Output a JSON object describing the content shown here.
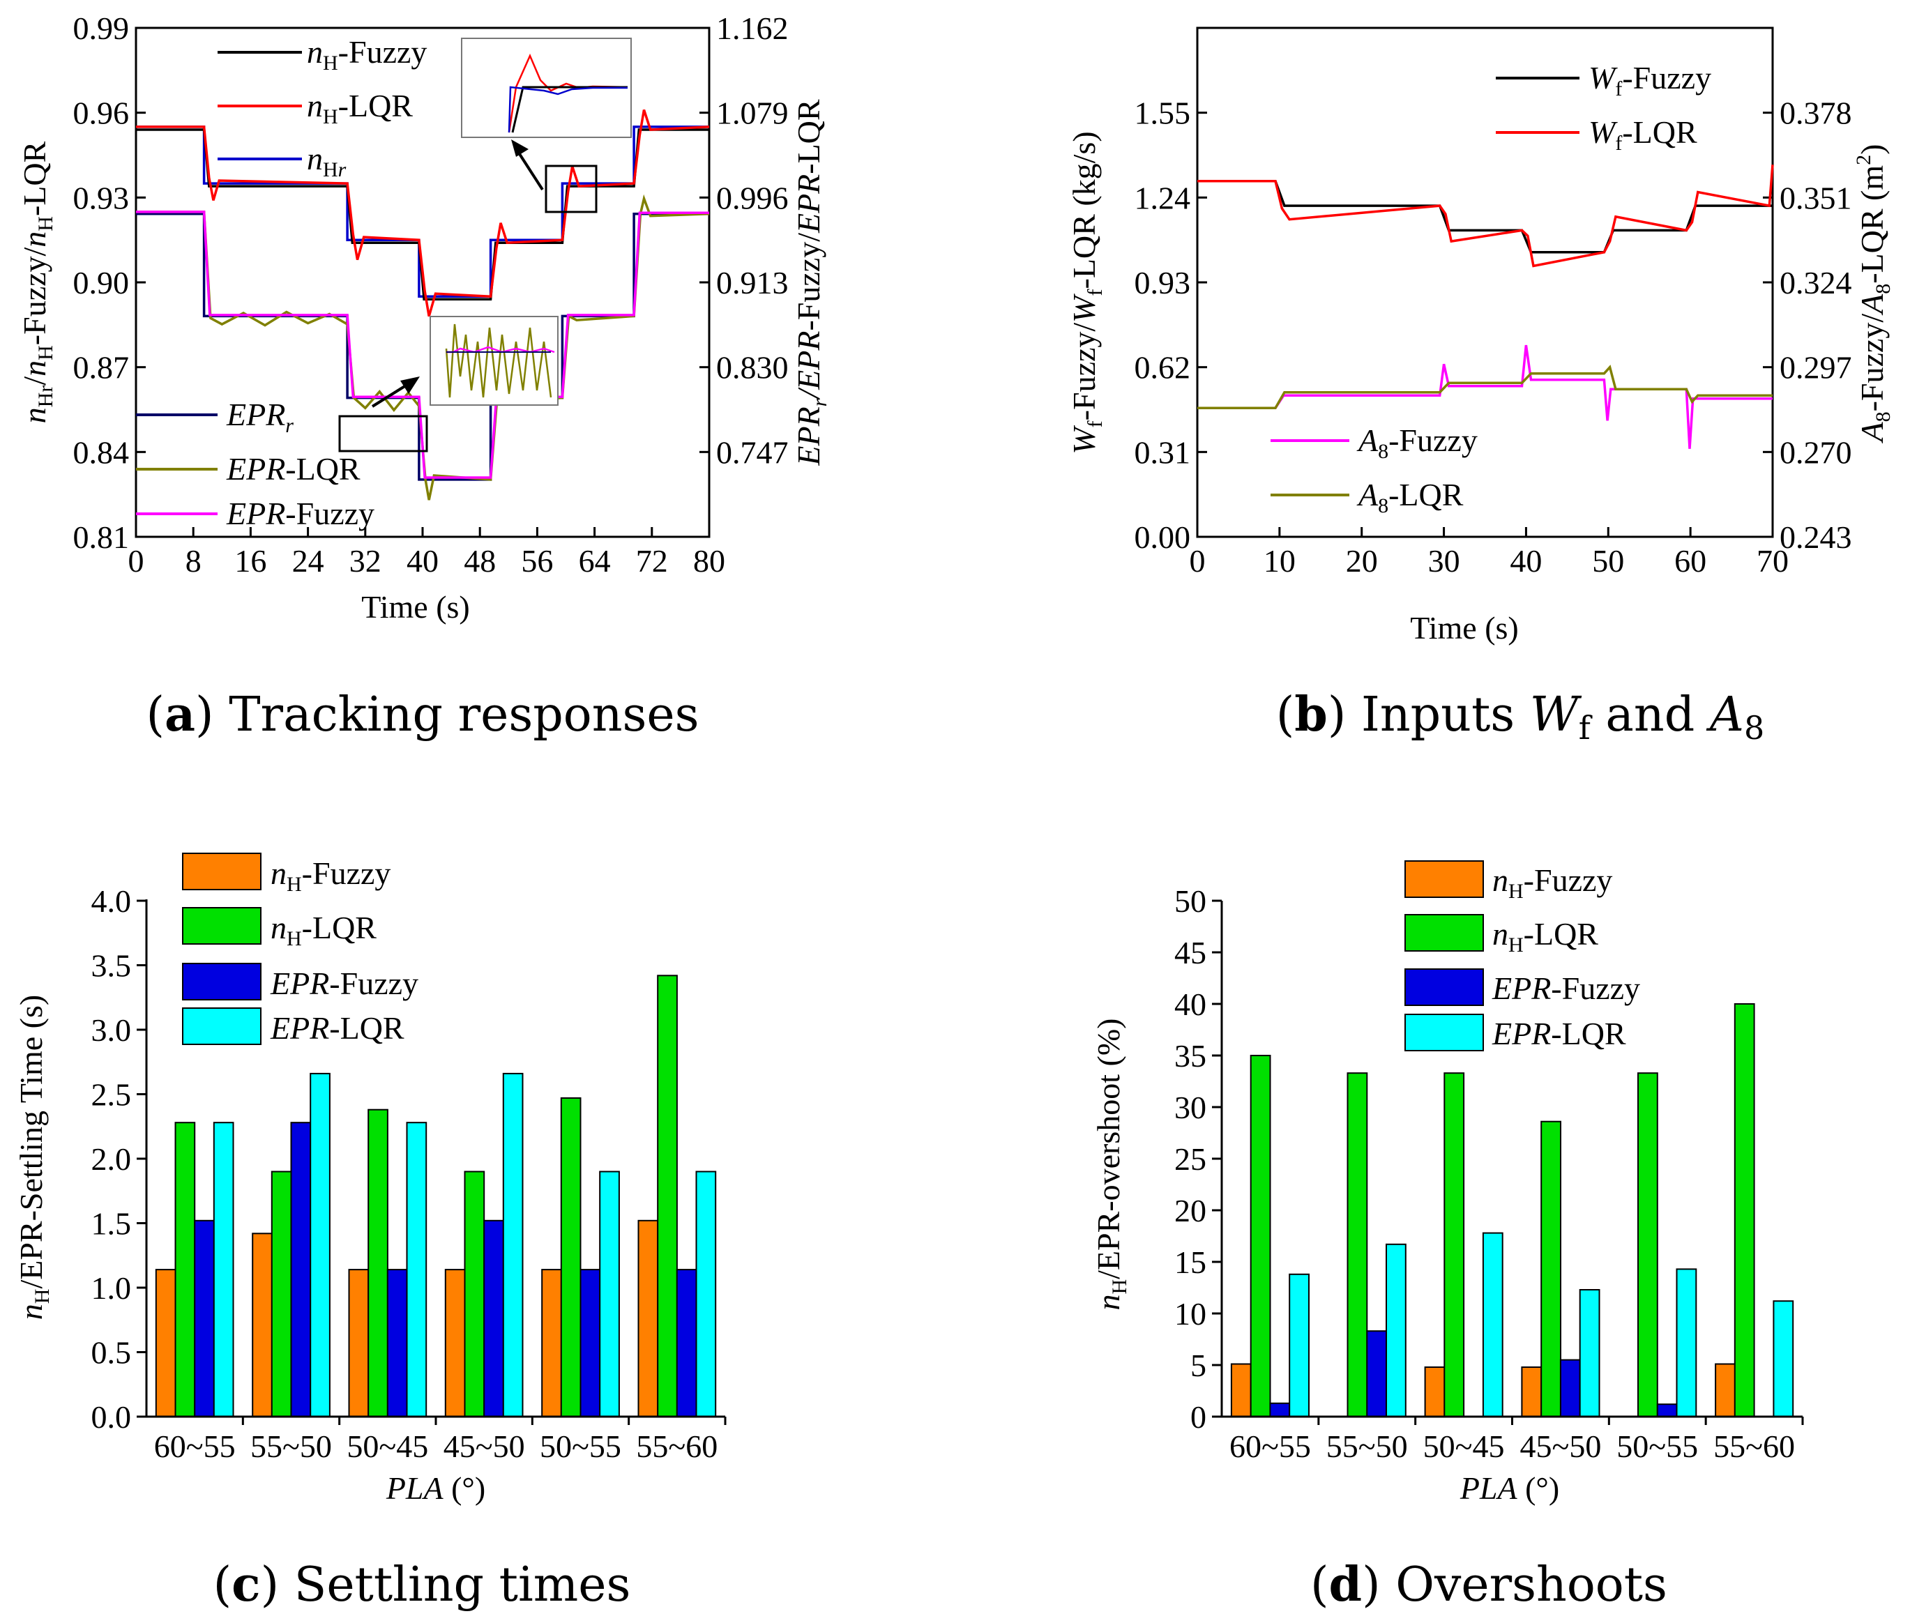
{
  "chart_data": [
    {
      "id": "a",
      "type": "line",
      "caption_letter": "a",
      "caption_text": "Tracking responses",
      "xlabel": "Time (s)",
      "ylabel_left": "nHr/nH-Fuzzy/nH-LQR",
      "ylabel_right": "EPRr/EPR-Fuzzy/EPR-LQR",
      "xlim": [
        0,
        80
      ],
      "xticks": [
        "0",
        "8",
        "16",
        "24",
        "32",
        "40",
        "48",
        "56",
        "64",
        "72",
        "80"
      ],
      "ylim_left": [
        0.81,
        0.99
      ],
      "yticks_left": [
        "0.81",
        "0.84",
        "0.87",
        "0.90",
        "0.93",
        "0.96",
        "0.99"
      ],
      "ylim_right": [
        0.664,
        1.162
      ],
      "yticks_right": [
        "0.747",
        "0.830",
        "0.913",
        "0.996",
        "1.079",
        "1.162"
      ],
      "legend": [
        "nH-Fuzzy",
        "nH-LQR",
        "nHr",
        "EPRr",
        "EPR-LQR",
        "EPR-Fuzzy"
      ],
      "series": [
        {
          "name": "nHr",
          "color": "#0000cc",
          "axis": "left",
          "x": [
            0,
            9.5,
            9.5,
            29.5,
            29.5,
            39.5,
            39.5,
            49.5,
            49.5,
            59.5,
            59.5,
            69.5,
            69.5,
            80
          ],
          "y": [
            0.955,
            0.955,
            0.935,
            0.935,
            0.915,
            0.915,
            0.895,
            0.895,
            0.915,
            0.915,
            0.935,
            0.935,
            0.955,
            0.955
          ]
        },
        {
          "name": "nH-Fuzzy",
          "color": "#000000",
          "axis": "left",
          "x": [
            0,
            9.5,
            10.2,
            29.5,
            30.2,
            39.5,
            40.2,
            49.5,
            50.2,
            59.5,
            60.2,
            69.5,
            70.2,
            80
          ],
          "y": [
            0.954,
            0.954,
            0.934,
            0.934,
            0.914,
            0.914,
            0.894,
            0.894,
            0.914,
            0.914,
            0.934,
            0.934,
            0.954,
            0.954
          ]
        },
        {
          "name": "nH-LQR",
          "color": "#ff0000",
          "axis": "left",
          "x": [
            0,
            9.5,
            10.2,
            10.8,
            11.6,
            29.5,
            30.3,
            30.9,
            31.8,
            39.5,
            40.3,
            40.9,
            41.8,
            49.5,
            50.3,
            50.9,
            51.8,
            59.5,
            60.3,
            60.9,
            61.8,
            69.5,
            70.3,
            70.9,
            71.8,
            80
          ],
          "y": [
            0.955,
            0.955,
            0.937,
            0.929,
            0.936,
            0.935,
            0.917,
            0.908,
            0.916,
            0.915,
            0.897,
            0.888,
            0.896,
            0.895,
            0.912,
            0.921,
            0.914,
            0.915,
            0.932,
            0.941,
            0.934,
            0.935,
            0.952,
            0.961,
            0.954,
            0.955
          ]
        },
        {
          "name": "EPRr",
          "color": "#000066",
          "axis": "right",
          "x": [
            0,
            9.5,
            9.5,
            29.5,
            29.5,
            39.5,
            39.5,
            49.5,
            49.5,
            59.5,
            59.5,
            69.5,
            69.5,
            80
          ],
          "y": [
            0.98,
            0.98,
            0.88,
            0.88,
            0.8,
            0.8,
            0.72,
            0.72,
            0.8,
            0.8,
            0.88,
            0.88,
            0.98,
            0.98
          ]
        },
        {
          "name": "EPR-LQR",
          "color": "#808000",
          "axis": "right",
          "x": [
            0,
            9.5,
            10.4,
            12,
            15,
            18,
            21,
            24,
            27,
            29.5,
            30.4,
            32,
            34,
            36,
            38,
            39.5,
            40.4,
            40.9,
            41.6,
            49.5,
            50.4,
            51.5,
            59.5,
            60.4,
            61.5,
            69.5,
            70.4,
            70.9,
            71.8,
            80
          ],
          "y": [
            0.982,
            0.982,
            0.878,
            0.872,
            0.883,
            0.871,
            0.884,
            0.873,
            0.882,
            0.872,
            0.8,
            0.79,
            0.806,
            0.788,
            0.805,
            0.792,
            0.72,
            0.7,
            0.724,
            0.72,
            0.8,
            0.796,
            0.8,
            0.88,
            0.876,
            0.88,
            0.98,
            0.995,
            0.978,
            0.98
          ]
        },
        {
          "name": "EPR-Fuzzy",
          "color": "#ff00ff",
          "axis": "right",
          "x": [
            0,
            9.5,
            10.3,
            29.5,
            30.3,
            39.5,
            40.3,
            49.5,
            50.3,
            59.5,
            60.3,
            69.5,
            70.3,
            80
          ],
          "y": [
            0.982,
            0.982,
            0.881,
            0.881,
            0.801,
            0.801,
            0.722,
            0.722,
            0.801,
            0.801,
            0.881,
            0.881,
            0.981,
            0.981
          ]
        }
      ]
    },
    {
      "id": "b",
      "type": "line",
      "caption_letter": "b",
      "caption_text": "Inputs",
      "caption_sym1": "W",
      "caption_sub1": "f",
      "caption_and": "and",
      "caption_sym2": "A",
      "caption_sub2": "8",
      "xlabel": "Time (s)",
      "ylabel_left": "Wf-Fuzzy/Wf-LQR (kg/s)",
      "ylabel_right": "A8-Fuzzy/A8-LQR (m2)",
      "xlim": [
        0,
        70
      ],
      "xticks": [
        "0",
        "10",
        "20",
        "30",
        "40",
        "50",
        "60",
        "70"
      ],
      "ylim_left": [
        0.0,
        1.86
      ],
      "yticks_left": [
        "0.00",
        "0.31",
        "0.62",
        "0.93",
        "1.24",
        "1.55"
      ],
      "ylim_right": [
        0.243,
        0.405
      ],
      "yticks_right": [
        "0.243",
        "0.270",
        "0.297",
        "0.324",
        "0.351",
        "0.378"
      ],
      "legend": [
        "Wf-Fuzzy",
        "Wf-LQR",
        "A8-Fuzzy",
        "A8-LQR"
      ],
      "series": [
        {
          "name": "Wf-Fuzzy",
          "color": "#000000",
          "axis": "left",
          "x": [
            0,
            9.5,
            10.6,
            29.5,
            30.6,
            39.5,
            40.6,
            49.5,
            50.6,
            59.5,
            60.6,
            70
          ],
          "y": [
            1.3,
            1.3,
            1.21,
            1.21,
            1.12,
            1.12,
            1.04,
            1.04,
            1.12,
            1.12,
            1.21,
            1.21
          ]
        },
        {
          "name": "Wf-LQR",
          "color": "#ff0000",
          "axis": "left",
          "x": [
            0,
            9.5,
            10.3,
            11.2,
            29.5,
            30.2,
            30.9,
            39.5,
            40.2,
            40.9,
            49.5,
            50.2,
            50.9,
            59.5,
            60.2,
            60.9,
            69.6,
            70
          ],
          "y": [
            1.3,
            1.3,
            1.2,
            1.16,
            1.21,
            1.18,
            1.08,
            1.12,
            1.1,
            0.99,
            1.04,
            1.08,
            1.17,
            1.12,
            1.15,
            1.26,
            1.21,
            1.36
          ]
        },
        {
          "name": "A8-Fuzzy",
          "color": "#ff00ff",
          "axis": "right",
          "x": [
            0,
            9.5,
            10.5,
            29.5,
            30.0,
            30.6,
            39.5,
            40.0,
            40.6,
            49.5,
            49.9,
            50.3,
            59.5,
            59.9,
            60.3,
            70
          ],
          "y": [
            0.284,
            0.284,
            0.288,
            0.288,
            0.298,
            0.291,
            0.291,
            0.304,
            0.293,
            0.293,
            0.28,
            0.29,
            0.29,
            0.271,
            0.287,
            0.287
          ]
        },
        {
          "name": "A8-LQR",
          "color": "#808000",
          "axis": "right",
          "x": [
            0,
            9.5,
            10.6,
            29.5,
            30.6,
            39.5,
            40.6,
            49.5,
            50.2,
            50.9,
            59.5,
            60.2,
            60.9,
            70
          ],
          "y": [
            0.284,
            0.284,
            0.289,
            0.289,
            0.292,
            0.292,
            0.295,
            0.295,
            0.297,
            0.29,
            0.29,
            0.286,
            0.288,
            0.288
          ]
        }
      ]
    },
    {
      "id": "c",
      "type": "bar",
      "caption_letter": "c",
      "caption_text": "Settling times",
      "xlabel": "PLA (°)",
      "ylabel": "nH/EPR-Settling Time (s)",
      "categories": [
        "60~55",
        "55~50",
        "50~45",
        "45~50",
        "50~55",
        "55~60"
      ],
      "ylim": [
        0.0,
        4.0
      ],
      "yticks": [
        "0.0",
        "0.5",
        "1.0",
        "1.5",
        "2.0",
        "2.5",
        "3.0",
        "3.5",
        "4.0"
      ],
      "legend": [
        "nH-Fuzzy",
        "nH-LQR",
        "EPR-Fuzzy",
        "EPR-LQR"
      ],
      "series": [
        {
          "name": "nH-Fuzzy",
          "color": "#ff8000",
          "values": [
            1.14,
            1.42,
            1.14,
            1.14,
            1.14,
            1.52
          ]
        },
        {
          "name": "nH-LQR",
          "color": "#00e000",
          "values": [
            2.28,
            1.9,
            2.38,
            1.9,
            2.47,
            3.42
          ]
        },
        {
          "name": "EPR-Fuzzy",
          "color": "#0000e0",
          "values": [
            1.52,
            2.28,
            1.14,
            1.52,
            1.14,
            1.14
          ]
        },
        {
          "name": "EPR-LQR",
          "color": "#00ffff",
          "values": [
            2.28,
            2.66,
            2.28,
            2.66,
            1.9,
            1.9
          ]
        }
      ]
    },
    {
      "id": "d",
      "type": "bar",
      "caption_letter": "d",
      "caption_text": "Overshoots",
      "xlabel": "PLA (°)",
      "ylabel": "nH/EPR-overshoot (%)",
      "categories": [
        "60~55",
        "55~50",
        "50~45",
        "45~50",
        "50~55",
        "55~60"
      ],
      "ylim": [
        0,
        50
      ],
      "yticks": [
        "0",
        "5",
        "10",
        "15",
        "20",
        "25",
        "30",
        "35",
        "40",
        "45",
        "50"
      ],
      "legend": [
        "nH-Fuzzy",
        "nH-LQR",
        "EPR-Fuzzy",
        "EPR-LQR"
      ],
      "series": [
        {
          "name": "nH-Fuzzy",
          "color": "#ff8000",
          "values": [
            5.1,
            0,
            4.8,
            4.8,
            0,
            5.1
          ]
        },
        {
          "name": "nH-LQR",
          "color": "#00e000",
          "values": [
            35,
            33.3,
            33.3,
            28.6,
            33.3,
            40
          ]
        },
        {
          "name": "EPR-Fuzzy",
          "color": "#0000e0",
          "values": [
            1.3,
            8.3,
            0,
            5.5,
            1.2,
            0
          ]
        },
        {
          "name": "EPR-LQR",
          "color": "#00ffff",
          "values": [
            13.8,
            16.7,
            17.8,
            12.3,
            14.3,
            11.2
          ]
        }
      ]
    }
  ]
}
